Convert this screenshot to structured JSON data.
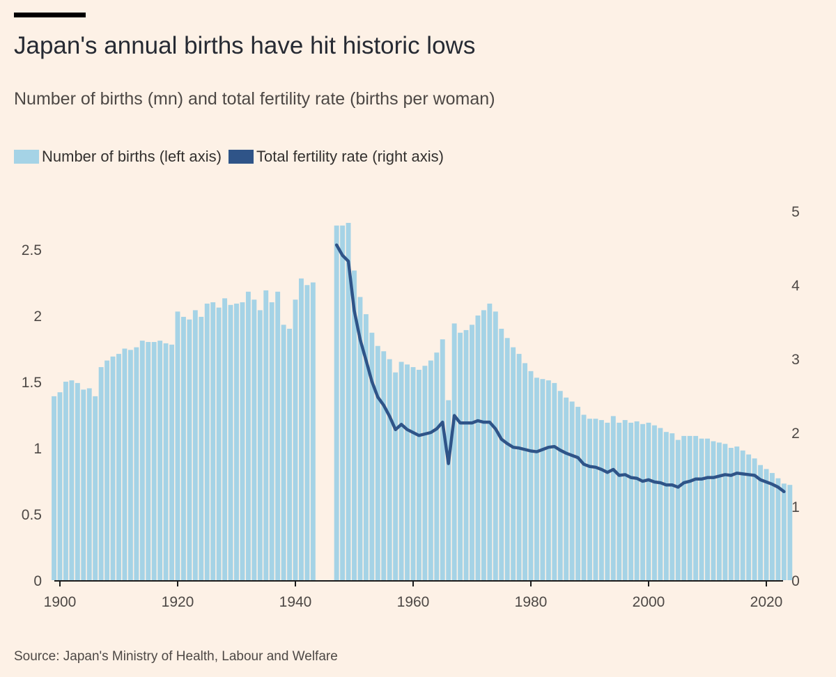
{
  "title": "Japan's annual births have hit historic lows",
  "subtitle": "Number of births (mn) and total fertility rate (births per woman)",
  "legend": [
    {
      "label": "Number of births (left axis)",
      "color": "#a5d3e6"
    },
    {
      "label": "Total fertility rate (right axis)",
      "color": "#2f5488"
    }
  ],
  "source": "Source: Japan's Ministry of Health, Labour and Welfare",
  "chart_data": {
    "type": "bar+line",
    "x_ticks": [
      "1900",
      "1920",
      "1940",
      "1960",
      "1980",
      "2000",
      "2020"
    ],
    "left_ticks": [
      "0",
      "0.5",
      "1",
      "1.5",
      "2",
      "2.5"
    ],
    "right_ticks": [
      "0",
      "1",
      "2",
      "3",
      "4",
      "5"
    ],
    "left_ylim": [
      0,
      2.9
    ],
    "right_ylim": [
      0,
      5.4
    ],
    "series": [
      {
        "name": "Number of births (left axis)",
        "type": "bar",
        "axis": "left",
        "x": [
          1899,
          1900,
          1901,
          1902,
          1903,
          1904,
          1905,
          1906,
          1907,
          1908,
          1909,
          1910,
          1911,
          1912,
          1913,
          1914,
          1915,
          1916,
          1917,
          1918,
          1919,
          1920,
          1921,
          1922,
          1923,
          1924,
          1925,
          1926,
          1927,
          1928,
          1929,
          1930,
          1931,
          1932,
          1933,
          1934,
          1935,
          1936,
          1937,
          1938,
          1939,
          1940,
          1941,
          1942,
          1943,
          1947,
          1948,
          1949,
          1950,
          1951,
          1952,
          1953,
          1954,
          1955,
          1956,
          1957,
          1958,
          1959,
          1960,
          1961,
          1962,
          1963,
          1964,
          1965,
          1966,
          1967,
          1968,
          1969,
          1970,
          1971,
          1972,
          1973,
          1974,
          1975,
          1976,
          1977,
          1978,
          1979,
          1980,
          1981,
          1982,
          1983,
          1984,
          1985,
          1986,
          1987,
          1988,
          1989,
          1990,
          1991,
          1992,
          1993,
          1994,
          1995,
          1996,
          1997,
          1998,
          1999,
          2000,
          2001,
          2002,
          2003,
          2004,
          2005,
          2006,
          2007,
          2008,
          2009,
          2010,
          2011,
          2012,
          2013,
          2014,
          2015,
          2016,
          2017,
          2018,
          2019,
          2020,
          2021,
          2022,
          2023,
          2024
        ],
        "values": [
          1.39,
          1.42,
          1.5,
          1.51,
          1.49,
          1.44,
          1.45,
          1.39,
          1.61,
          1.66,
          1.69,
          1.71,
          1.75,
          1.74,
          1.76,
          1.81,
          1.8,
          1.8,
          1.81,
          1.79,
          1.78,
          2.03,
          1.99,
          1.97,
          2.04,
          1.99,
          2.09,
          2.1,
          2.06,
          2.13,
          2.08,
          2.09,
          2.1,
          2.18,
          2.12,
          2.04,
          2.19,
          2.1,
          2.18,
          1.93,
          1.9,
          2.12,
          2.28,
          2.23,
          2.25,
          2.68,
          2.68,
          2.7,
          2.34,
          2.14,
          2.01,
          1.87,
          1.77,
          1.73,
          1.67,
          1.57,
          1.65,
          1.63,
          1.61,
          1.59,
          1.62,
          1.66,
          1.72,
          1.82,
          1.36,
          1.94,
          1.87,
          1.89,
          1.93,
          2.0,
          2.04,
          2.09,
          2.03,
          1.9,
          1.83,
          1.76,
          1.71,
          1.64,
          1.58,
          1.53,
          1.52,
          1.51,
          1.49,
          1.43,
          1.38,
          1.35,
          1.31,
          1.25,
          1.22,
          1.22,
          1.21,
          1.19,
          1.24,
          1.19,
          1.21,
          1.19,
          1.2,
          1.18,
          1.19,
          1.17,
          1.15,
          1.12,
          1.11,
          1.06,
          1.09,
          1.09,
          1.09,
          1.07,
          1.07,
          1.05,
          1.04,
          1.03,
          1.0,
          1.01,
          0.98,
          0.95,
          0.92,
          0.87,
          0.84,
          0.81,
          0.77,
          0.73,
          0.72
        ]
      },
      {
        "name": "Total fertility rate (right axis)",
        "type": "line",
        "axis": "right",
        "x": [
          1947,
          1948,
          1949,
          1950,
          1951,
          1952,
          1953,
          1954,
          1955,
          1956,
          1957,
          1958,
          1959,
          1960,
          1961,
          1962,
          1963,
          1964,
          1965,
          1966,
          1967,
          1968,
          1969,
          1970,
          1971,
          1972,
          1973,
          1974,
          1975,
          1976,
          1977,
          1978,
          1979,
          1980,
          1981,
          1982,
          1983,
          1984,
          1985,
          1986,
          1987,
          1988,
          1989,
          1990,
          1991,
          1992,
          1993,
          1994,
          1995,
          1996,
          1997,
          1998,
          1999,
          2000,
          2001,
          2002,
          2003,
          2004,
          2005,
          2006,
          2007,
          2008,
          2009,
          2010,
          2011,
          2012,
          2013,
          2014,
          2015,
          2016,
          2017,
          2018,
          2019,
          2020,
          2021,
          2022,
          2023
        ],
        "values": [
          4.54,
          4.4,
          4.32,
          3.65,
          3.26,
          2.98,
          2.69,
          2.48,
          2.37,
          2.22,
          2.04,
          2.11,
          2.04,
          2.0,
          1.96,
          1.98,
          2.0,
          2.05,
          2.14,
          1.58,
          2.23,
          2.13,
          2.13,
          2.13,
          2.16,
          2.14,
          2.14,
          2.05,
          1.91,
          1.85,
          1.8,
          1.79,
          1.77,
          1.75,
          1.74,
          1.77,
          1.8,
          1.81,
          1.76,
          1.72,
          1.69,
          1.66,
          1.57,
          1.54,
          1.53,
          1.5,
          1.46,
          1.5,
          1.42,
          1.43,
          1.39,
          1.38,
          1.34,
          1.36,
          1.33,
          1.32,
          1.29,
          1.29,
          1.26,
          1.32,
          1.34,
          1.37,
          1.37,
          1.39,
          1.39,
          1.41,
          1.43,
          1.42,
          1.45,
          1.44,
          1.43,
          1.42,
          1.36,
          1.33,
          1.3,
          1.26,
          1.2
        ]
      }
    ]
  }
}
